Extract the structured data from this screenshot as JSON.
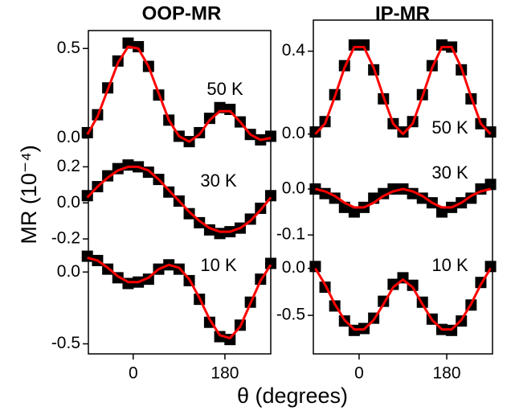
{
  "figure": {
    "ylabel": "MR (10⁻⁴)",
    "xlabel": "θ (degrees)"
  },
  "chart_data": [
    {
      "type": "scatter",
      "title": "OOP-MR",
      "annotation": "50 K",
      "x": [
        -90,
        -70,
        -50,
        -30,
        -10,
        10,
        30,
        50,
        70,
        90,
        110,
        130,
        150,
        170,
        190,
        210,
        230,
        250,
        270
      ],
      "series": [
        {
          "style": "square",
          "color": "#000000",
          "values": [
            0.03,
            0.13,
            0.28,
            0.43,
            0.53,
            0.51,
            0.4,
            0.24,
            0.1,
            0.01,
            -0.02,
            0.03,
            0.11,
            0.17,
            0.16,
            0.09,
            0.02,
            -0.01,
            0.01
          ]
        },
        {
          "style": "line",
          "color": "#ff0000",
          "values": [
            0.02,
            0.12,
            0.27,
            0.42,
            0.51,
            0.5,
            0.4,
            0.25,
            0.1,
            0.01,
            -0.02,
            0.02,
            0.1,
            0.15,
            0.15,
            0.09,
            0.02,
            -0.01,
            0.0
          ]
        }
      ],
      "xlim": [
        -88,
        270
      ],
      "ylim": [
        -0.06,
        0.6
      ],
      "yticks": [
        {
          "value": 0,
          "label": "0.0"
        },
        0.5
      ]
    },
    {
      "type": "scatter",
      "annotation": "30 K",
      "x": [
        -90,
        -70,
        -50,
        -30,
        -10,
        10,
        30,
        50,
        70,
        90,
        110,
        130,
        150,
        170,
        190,
        210,
        230,
        250,
        270
      ],
      "series": [
        {
          "style": "square",
          "color": "#000000",
          "values": [
            0.04,
            0.09,
            0.15,
            0.19,
            0.21,
            0.2,
            0.17,
            0.13,
            0.06,
            0.01,
            -0.06,
            -0.11,
            -0.15,
            -0.17,
            -0.16,
            -0.14,
            -0.09,
            -0.03,
            0.04
          ]
        },
        {
          "style": "line",
          "color": "#ff0000",
          "values": [
            0.03,
            0.09,
            0.14,
            0.18,
            0.2,
            0.2,
            0.18,
            0.13,
            0.07,
            0.01,
            -0.05,
            -0.1,
            -0.14,
            -0.16,
            -0.16,
            -0.14,
            -0.1,
            -0.04,
            0.03
          ]
        }
      ],
      "xlim": [
        -88,
        270
      ],
      "ylim": [
        -0.28,
        0.3
      ],
      "yticks": [
        -0.2,
        {
          "value": 0,
          "label": "0.0"
        },
        0.2
      ]
    },
    {
      "type": "scatter",
      "annotation": "10 K",
      "x": [
        -90,
        -70,
        -50,
        -30,
        -10,
        10,
        30,
        50,
        70,
        90,
        110,
        130,
        150,
        170,
        190,
        210,
        230,
        250,
        270
      ],
      "series": [
        {
          "style": "square",
          "color": "#000000",
          "values": [
            0.11,
            0.08,
            0.02,
            -0.04,
            -0.08,
            -0.07,
            -0.05,
            0.02,
            0.05,
            0.02,
            -0.06,
            -0.19,
            -0.35,
            -0.45,
            -0.47,
            -0.37,
            -0.21,
            -0.05,
            0.06
          ]
        },
        {
          "style": "line",
          "color": "#ff0000",
          "values": [
            0.1,
            0.08,
            0.03,
            -0.03,
            -0.07,
            -0.07,
            -0.04,
            0.02,
            0.05,
            0.03,
            -0.05,
            -0.18,
            -0.33,
            -0.44,
            -0.46,
            -0.38,
            -0.22,
            -0.06,
            0.05
          ]
        }
      ],
      "xlim": [
        -88,
        270
      ],
      "ylim": [
        -0.57,
        0.13
      ],
      "yticks": [
        -0.5,
        {
          "value": 0,
          "label": "0.0"
        }
      ],
      "xticks": [
        0,
        180
      ]
    },
    {
      "type": "scatter",
      "title": "IP-MR",
      "annotation": "50 K",
      "x": [
        -90,
        -70,
        -50,
        -30,
        -10,
        10,
        30,
        50,
        70,
        90,
        110,
        130,
        150,
        170,
        190,
        210,
        230,
        250,
        270
      ],
      "series": [
        {
          "style": "square",
          "color": "#000000",
          "values": [
            0.01,
            0.06,
            0.19,
            0.33,
            0.43,
            0.43,
            0.31,
            0.17,
            0.05,
            0.01,
            0.06,
            0.19,
            0.33,
            0.43,
            0.42,
            0.31,
            0.17,
            0.05,
            0.01
          ]
        },
        {
          "style": "line",
          "color": "#ff0000",
          "values": [
            0.0,
            0.05,
            0.18,
            0.32,
            0.42,
            0.42,
            0.32,
            0.18,
            0.05,
            0.0,
            0.05,
            0.18,
            0.32,
            0.42,
            0.42,
            0.32,
            0.18,
            0.05,
            0.0
          ]
        }
      ],
      "xlim": [
        -94,
        274
      ],
      "ylim": [
        -0.11,
        0.55
      ],
      "yticks": [
        {
          "value": 0,
          "label": "0.0"
        },
        0.4
      ]
    },
    {
      "type": "scatter",
      "annotation": "30 K",
      "x": [
        -90,
        -70,
        -50,
        -30,
        -10,
        10,
        30,
        50,
        70,
        90,
        110,
        130,
        150,
        170,
        190,
        210,
        230,
        250,
        270
      ],
      "series": [
        {
          "style": "square",
          "color": "#000000",
          "values": [
            0.0,
            -0.01,
            -0.02,
            -0.04,
            -0.05,
            -0.04,
            -0.02,
            -0.01,
            0.0,
            0.0,
            -0.01,
            -0.02,
            -0.03,
            -0.05,
            -0.04,
            -0.03,
            -0.02,
            0.0,
            0.01
          ]
        },
        {
          "style": "line",
          "color": "#ff0000",
          "values": [
            0.0,
            -0.005,
            -0.015,
            -0.03,
            -0.04,
            -0.04,
            -0.03,
            -0.015,
            -0.005,
            0.0,
            -0.005,
            -0.015,
            -0.03,
            -0.04,
            -0.04,
            -0.03,
            -0.015,
            -0.005,
            0.0
          ]
        }
      ],
      "xlim": [
        -94,
        274
      ],
      "ylim": [
        -0.14,
        0.07
      ],
      "yticks": [
        -0.1,
        {
          "value": 0,
          "label": "0.0"
        }
      ]
    },
    {
      "type": "scatter",
      "annotation": "10 K",
      "x": [
        -90,
        -70,
        -50,
        -30,
        -10,
        10,
        30,
        50,
        70,
        90,
        110,
        130,
        150,
        170,
        190,
        210,
        230,
        250,
        270
      ],
      "series": [
        {
          "style": "square",
          "color": "#000000",
          "values": [
            0.02,
            -0.2,
            -0.4,
            -0.56,
            -0.66,
            -0.64,
            -0.53,
            -0.35,
            -0.17,
            -0.1,
            -0.18,
            -0.36,
            -0.54,
            -0.65,
            -0.66,
            -0.56,
            -0.39,
            -0.15,
            0.02
          ]
        },
        {
          "style": "line",
          "color": "#ff0000",
          "values": [
            0.0,
            -0.17,
            -0.38,
            -0.55,
            -0.65,
            -0.65,
            -0.55,
            -0.38,
            -0.2,
            -0.12,
            -0.2,
            -0.38,
            -0.55,
            -0.65,
            -0.65,
            -0.55,
            -0.38,
            -0.17,
            0.0
          ]
        }
      ],
      "xlim": [
        -94,
        274
      ],
      "ylim": [
        -0.91,
        0.16
      ],
      "yticks": [
        -0.5,
        {
          "value": 0,
          "label": "0.0"
        }
      ],
      "xticks": [
        0,
        180
      ]
    }
  ]
}
